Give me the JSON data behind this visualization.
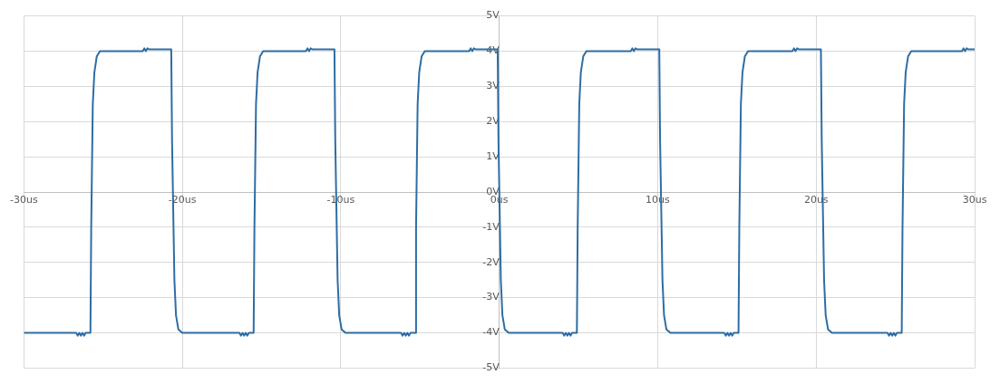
{
  "chart_data": {
    "type": "line",
    "xlim": [
      -30,
      30
    ],
    "ylim": [
      -5,
      5
    ],
    "xticks": [
      {
        "value": -30,
        "label": "-30us"
      },
      {
        "value": -20,
        "label": "-20us"
      },
      {
        "value": -10,
        "label": "-10us"
      },
      {
        "value": 0,
        "label": "0us"
      },
      {
        "value": 10,
        "label": "10us"
      },
      {
        "value": 20,
        "label": "20us"
      },
      {
        "value": 30,
        "label": "30us"
      }
    ],
    "yticks": [
      {
        "value": -5,
        "label": "-5V"
      },
      {
        "value": -4,
        "label": "-4V"
      },
      {
        "value": -3,
        "label": "-3V"
      },
      {
        "value": -2,
        "label": "-2V"
      },
      {
        "value": -1,
        "label": "-1V"
      },
      {
        "value": 0,
        "label": "0V"
      },
      {
        "value": 1,
        "label": "1V"
      },
      {
        "value": 2,
        "label": "2V"
      },
      {
        "value": 3,
        "label": "3V"
      },
      {
        "value": 4,
        "label": "4V"
      },
      {
        "value": 5,
        "label": "5V"
      }
    ],
    "grid": true,
    "legend": false,
    "marker": "none",
    "line_style": "solid",
    "series": [
      {
        "color": "#2e6da4",
        "x": [
          -30,
          -26.7,
          -26.6,
          -26.5,
          -26.4,
          -26.3,
          -26.2,
          -26.1,
          -25.8,
          -25.75,
          -25.65,
          -25.55,
          -25.4,
          -25.2,
          -22.5,
          -22.4,
          -22.3,
          -22.2,
          -22.1,
          -20.7,
          -20.65,
          -20.5,
          -20.4,
          -20.25,
          -20.0,
          -16.4,
          -16.3,
          -16.2,
          -16.1,
          -16.0,
          -15.9,
          -15.8,
          -15.5,
          -15.45,
          -15.35,
          -15.25,
          -15.1,
          -14.9,
          -12.2,
          -12.1,
          -12.0,
          -11.9,
          -11.8,
          -10.4,
          -10.35,
          -10.2,
          -10.1,
          -9.95,
          -9.7,
          -6.2,
          -6.1,
          -6.0,
          -5.9,
          -5.8,
          -5.7,
          -5.6,
          -5.3,
          -5.25,
          -5.15,
          -5.05,
          -4.9,
          -4.7,
          -1.9,
          -1.8,
          -1.7,
          -1.6,
          -1.5,
          -0.1,
          -0.05,
          0.1,
          0.2,
          0.35,
          0.6,
          4.0,
          4.1,
          4.2,
          4.3,
          4.4,
          4.5,
          4.6,
          4.9,
          4.95,
          5.05,
          5.15,
          5.3,
          5.5,
          8.3,
          8.4,
          8.5,
          8.6,
          8.7,
          10.1,
          10.15,
          10.3,
          10.4,
          10.55,
          10.8,
          14.2,
          14.3,
          14.4,
          14.5,
          14.6,
          14.7,
          14.8,
          15.1,
          15.15,
          15.25,
          15.35,
          15.5,
          15.7,
          18.5,
          18.6,
          18.7,
          18.8,
          18.9,
          20.3,
          20.35,
          20.5,
          20.6,
          20.75,
          21.0,
          24.5,
          24.6,
          24.7,
          24.8,
          24.9,
          25.0,
          25.1,
          25.4,
          25.45,
          25.55,
          25.65,
          25.8,
          26.0,
          29.2,
          29.3,
          29.4,
          29.5,
          29.6,
          30
        ],
        "values": [
          -4,
          -4,
          -4.08,
          -4,
          -4.08,
          -4,
          -4.08,
          -4,
          -4,
          -1,
          2.5,
          3.4,
          3.85,
          4,
          4,
          4.08,
          4,
          4.08,
          4.05,
          4.05,
          1.5,
          -2.5,
          -3.5,
          -3.9,
          -4,
          -4,
          -4.08,
          -4,
          -4.08,
          -4,
          -4.08,
          -4,
          -4,
          -1,
          2.5,
          3.4,
          3.85,
          4,
          4,
          4.08,
          4,
          4.08,
          4.05,
          4.05,
          1.5,
          -2.5,
          -3.5,
          -3.9,
          -4,
          -4,
          -4.08,
          -4,
          -4.08,
          -4,
          -4.08,
          -4,
          -4,
          -1,
          2.5,
          3.4,
          3.85,
          4,
          4,
          4.08,
          4,
          4.08,
          4.05,
          4.05,
          1.5,
          -2.5,
          -3.5,
          -3.9,
          -4,
          -4,
          -4.08,
          -4,
          -4.08,
          -4,
          -4.08,
          -4,
          -4,
          -1,
          2.5,
          3.4,
          3.85,
          4,
          4,
          4.08,
          4,
          4.08,
          4.05,
          4.05,
          1.5,
          -2.5,
          -3.5,
          -3.9,
          -4,
          -4,
          -4.08,
          -4,
          -4.08,
          -4,
          -4.08,
          -4,
          -4,
          -1,
          2.5,
          3.4,
          3.85,
          4,
          4,
          4.08,
          4,
          4.08,
          4.05,
          4.05,
          1.5,
          -2.5,
          -3.5,
          -3.9,
          -4,
          -4,
          -4.08,
          -4,
          -4.08,
          -4,
          -4.08,
          -4,
          -4,
          -1,
          2.5,
          3.4,
          3.85,
          4,
          4,
          4.08,
          4,
          4.08,
          4.05,
          4.05
        ]
      }
    ]
  }
}
